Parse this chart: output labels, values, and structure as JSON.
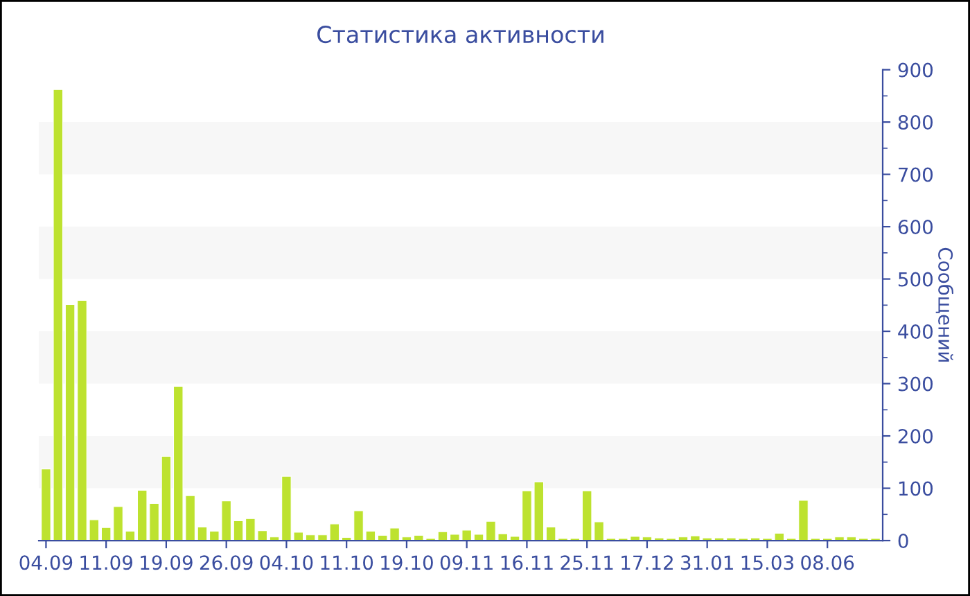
{
  "chart_data": {
    "type": "bar",
    "title": "Статистика активности",
    "ylabel": "Сообщений",
    "categories": [
      "04.09",
      null,
      null,
      null,
      null,
      "11.09",
      null,
      null,
      null,
      null,
      "19.09",
      null,
      null,
      null,
      null,
      "26.09",
      null,
      null,
      null,
      null,
      "04.10",
      null,
      null,
      null,
      null,
      "11.10",
      null,
      null,
      null,
      null,
      "19.10",
      null,
      null,
      null,
      null,
      "09.11",
      null,
      null,
      null,
      null,
      "16.11",
      null,
      null,
      null,
      null,
      "25.11",
      null,
      null,
      null,
      null,
      "17.12",
      null,
      null,
      null,
      null,
      "31.01",
      null,
      null,
      null,
      null,
      "15.03",
      null,
      null,
      null,
      null,
      "08.06",
      null,
      null,
      null,
      null
    ],
    "values": [
      137,
      862,
      451,
      459,
      40,
      25,
      65,
      18,
      96,
      71,
      161,
      295,
      86,
      26,
      18,
      76,
      38,
      42,
      19,
      7,
      123,
      16,
      11,
      11,
      32,
      6,
      57,
      18,
      10,
      24,
      7,
      10,
      4,
      17,
      12,
      20,
      12,
      37,
      13,
      8,
      95,
      112,
      26,
      4,
      4,
      95,
      36,
      4,
      4,
      8,
      7,
      5,
      4,
      7,
      9,
      5,
      5,
      5,
      4,
      5,
      4,
      14,
      4,
      77,
      4,
      4,
      7,
      7,
      4,
      4
    ],
    "color": "#bde22f",
    "ylim": [
      0,
      900
    ],
    "yticks": [
      0,
      {
        "value": 50,
        "label": null
      },
      100,
      {
        "value": 150,
        "label": null
      },
      200,
      {
        "value": 250,
        "label": null
      },
      300,
      {
        "value": 350,
        "label": null
      },
      400,
      {
        "value": 450,
        "label": null
      },
      500,
      {
        "value": 550,
        "label": null
      },
      600,
      {
        "value": 650,
        "label": null
      },
      700,
      {
        "value": 750,
        "label": null
      },
      800,
      {
        "value": 850,
        "label": null
      },
      900
    ],
    "bands": [
      {
        "axis": "y",
        "from": 100,
        "to": 200,
        "color": "#f7f7f7"
      },
      {
        "axis": "y",
        "from": 300,
        "to": 400,
        "color": "#f7f7f7"
      },
      {
        "axis": "y",
        "from": 500,
        "to": 600,
        "color": "#f7f7f7"
      },
      {
        "axis": "y",
        "from": 700,
        "to": 800,
        "color": "#f7f7f7"
      }
    ],
    "grid": false,
    "legend": false
  }
}
